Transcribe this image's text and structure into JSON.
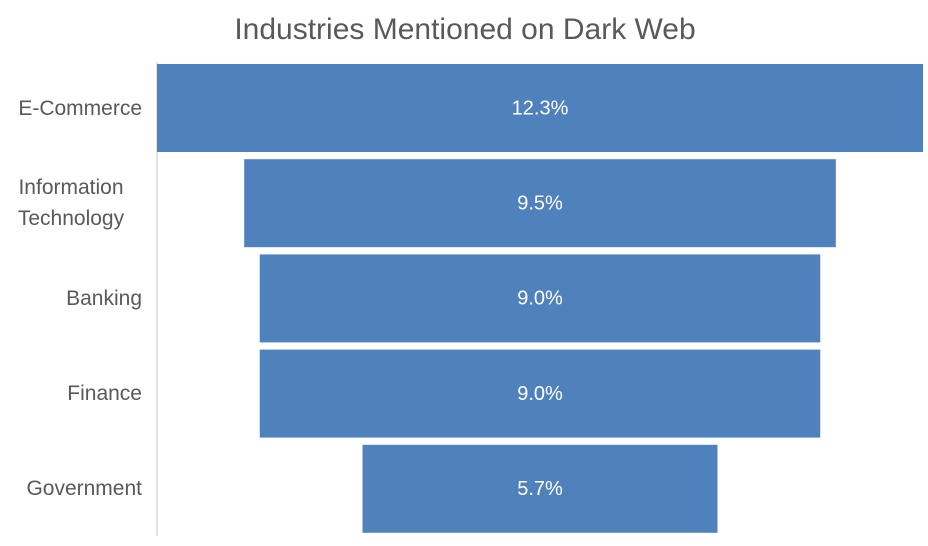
{
  "chart_data": {
    "type": "funnel",
    "title": "Industries Mentioned on Dark Web",
    "categories": [
      "E-Commerce",
      "Information Technology",
      "Banking",
      "Finance",
      "Government"
    ],
    "values": [
      12.3,
      9.5,
      9.0,
      9.0,
      5.7
    ],
    "value_labels": [
      "12.3%",
      "9.5%",
      "9.0%",
      "9.0%",
      "5.7%"
    ],
    "color": "#4f81bd"
  }
}
